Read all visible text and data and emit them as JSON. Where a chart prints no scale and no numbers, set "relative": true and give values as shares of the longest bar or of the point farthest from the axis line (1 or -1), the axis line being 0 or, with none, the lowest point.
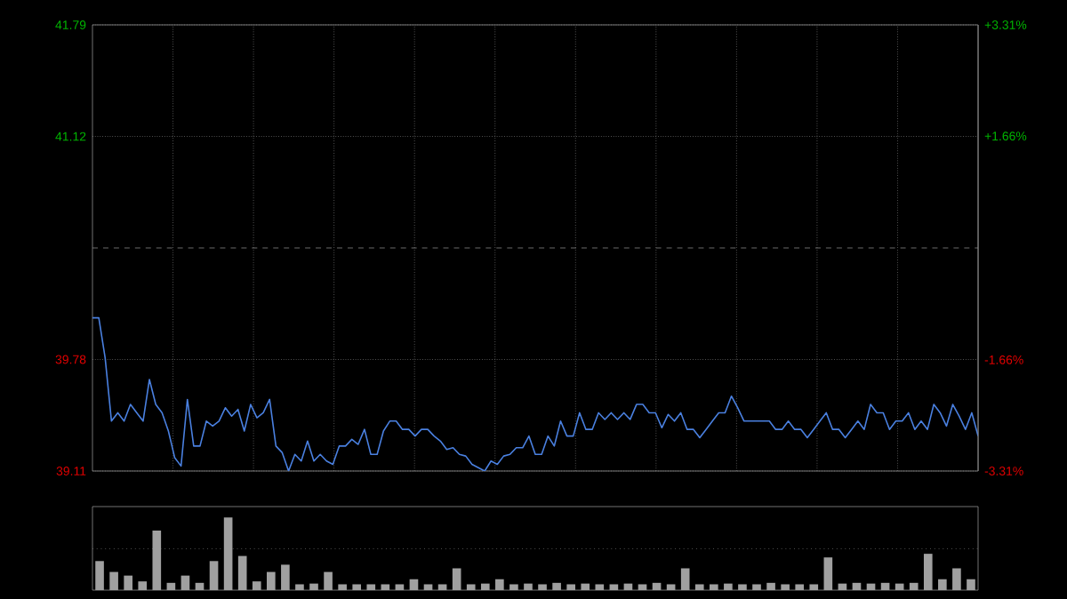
{
  "chart_data": [
    {
      "type": "line",
      "color": "#4a80e0",
      "marker": "none",
      "line_style": "solid",
      "grid": true,
      "tick_labels": "y",
      "categories": [
        null,
        null,
        null,
        null,
        null,
        null,
        null,
        null,
        null,
        null,
        null,
        null,
        null,
        null,
        null,
        null,
        null,
        null,
        null,
        null,
        null,
        null,
        null,
        null,
        null,
        null,
        null,
        null,
        null,
        null,
        null,
        null,
        null,
        null,
        null,
        null,
        null,
        null,
        null,
        null,
        null,
        null,
        null,
        null,
        null,
        null,
        null,
        null,
        null,
        null,
        null,
        null,
        null,
        null,
        null,
        null,
        null,
        null,
        null,
        null,
        null,
        null,
        null,
        null,
        null,
        null,
        null,
        null,
        null,
        null,
        null,
        null,
        null,
        null,
        null,
        null,
        null,
        null,
        null,
        null,
        null,
        null,
        null,
        null,
        null,
        null,
        null,
        null,
        null,
        null,
        null,
        null,
        null,
        null,
        null,
        null,
        null,
        null,
        null,
        null,
        null,
        null,
        null,
        null,
        null,
        null,
        null,
        null,
        null,
        null,
        null,
        null,
        null,
        null,
        null,
        null,
        null,
        null,
        null,
        null,
        null,
        null,
        null,
        null,
        null,
        null,
        null,
        null,
        null,
        null,
        null,
        null,
        null,
        null,
        null,
        null,
        null,
        null,
        null,
        null,
        null
      ],
      "values": [
        40.03,
        40.03,
        39.79,
        39.41,
        39.46,
        39.41,
        39.51,
        39.46,
        39.41,
        39.66,
        39.51,
        39.46,
        39.35,
        39.19,
        39.14,
        39.54,
        39.26,
        39.26,
        39.41,
        39.38,
        39.41,
        39.49,
        39.44,
        39.48,
        39.35,
        39.51,
        39.43,
        39.46,
        39.54,
        39.26,
        39.22,
        39.11,
        39.21,
        39.17,
        39.29,
        39.17,
        39.21,
        39.17,
        39.15,
        39.26,
        39.26,
        39.3,
        39.27,
        39.36,
        39.21,
        39.21,
        39.35,
        39.41,
        39.41,
        39.36,
        39.36,
        39.32,
        39.36,
        39.36,
        39.32,
        39.29,
        39.24,
        39.25,
        39.21,
        39.2,
        39.15,
        39.13,
        39.11,
        39.17,
        39.15,
        39.2,
        39.21,
        39.25,
        39.25,
        39.32,
        39.21,
        39.21,
        39.32,
        39.26,
        39.41,
        39.32,
        39.32,
        39.46,
        39.36,
        39.36,
        39.46,
        39.42,
        39.46,
        39.42,
        39.46,
        39.42,
        39.51,
        39.51,
        39.46,
        39.46,
        39.37,
        39.45,
        39.41,
        39.46,
        39.36,
        39.36,
        39.31,
        39.36,
        39.41,
        39.46,
        39.46,
        39.56,
        39.49,
        39.41,
        39.41,
        39.41,
        39.41,
        39.41,
        39.36,
        39.36,
        39.41,
        39.36,
        39.36,
        39.31,
        39.36,
        39.41,
        39.46,
        39.36,
        39.36,
        39.31,
        39.36,
        39.41,
        39.36,
        39.51,
        39.46,
        39.46,
        39.36,
        39.41,
        39.41,
        39.46,
        39.36,
        39.41,
        39.36,
        39.51,
        39.46,
        39.38,
        39.51,
        39.44,
        39.36,
        39.46,
        39.32
      ],
      "ylim": [
        39.11,
        41.79
      ],
      "yticks": [
        39.11,
        39.78,
        41.12,
        41.79
      ],
      "y2lim": [
        -3.31,
        3.31
      ],
      "y2ticks": [
        {
          "value": -3.31,
          "label": "-3.31%"
        },
        {
          "value": -1.66,
          "label": "-1.66%"
        },
        {
          "value": 1.66,
          "label": "+1.66%"
        },
        {
          "value": 3.31,
          "label": "+3.31%"
        }
      ],
      "ref_lines": [
        {
          "axis": "y",
          "value": 40.45,
          "line_style": "dashed",
          "color": "#888888"
        }
      ]
    },
    {
      "type": "bar",
      "relative": true,
      "color": "#a0a0a0",
      "ref_lines": [
        {
          "axis": "y",
          "value": 0.57,
          "line_style": "dotted",
          "color": "#808080"
        }
      ],
      "categories": [
        null,
        null,
        null,
        null,
        null,
        null,
        null,
        null,
        null,
        null,
        null,
        null,
        null,
        null,
        null,
        null,
        null,
        null,
        null,
        null,
        null,
        null,
        null,
        null,
        null,
        null,
        null,
        null,
        null,
        null,
        null,
        null,
        null,
        null,
        null,
        null,
        null,
        null,
        null,
        null,
        null,
        null,
        null,
        null,
        null,
        null,
        null,
        null,
        null,
        null,
        null,
        null,
        null,
        null,
        null,
        null,
        null,
        null,
        null,
        null,
        null,
        null
      ],
      "values": [
        0.4,
        0.25,
        0.2,
        0.12,
        0.82,
        0.1,
        0.2,
        0.1,
        0.4,
        1,
        0.47,
        0.12,
        0.25,
        0.35,
        0.08,
        0.09,
        0.25,
        0.08,
        0.08,
        0.08,
        0.08,
        0.08,
        0.15,
        0.08,
        0.08,
        0.3,
        0.08,
        0.09,
        0.15,
        0.08,
        0.09,
        0.08,
        0.1,
        0.08,
        0.09,
        0.08,
        0.08,
        0.09,
        0.08,
        0.1,
        0.08,
        0.3,
        0.08,
        0.08,
        0.09,
        0.08,
        0.08,
        0.1,
        0.08,
        0.08,
        0.08,
        0.45,
        0.09,
        0.1,
        0.09,
        0.1,
        0.09,
        0.1,
        0.5,
        0.15,
        0.3,
        0.15
      ]
    }
  ]
}
